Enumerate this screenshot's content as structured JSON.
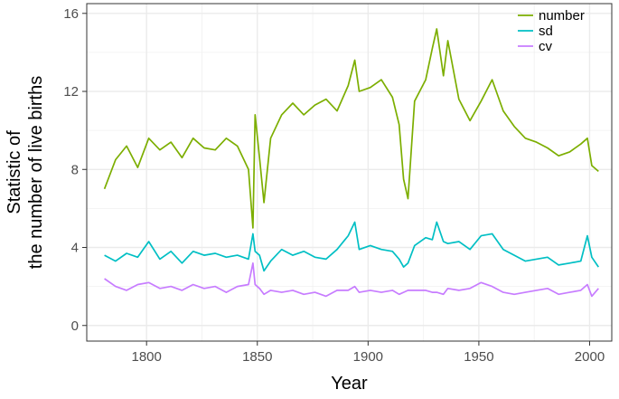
{
  "chart_data": {
    "type": "line",
    "xlabel": "Year",
    "ylabel_line1": "Statistic of",
    "ylabel_line2": "the number of live births",
    "xlim": [
      1773,
      2010
    ],
    "ylim": [
      -0.8,
      16.5
    ],
    "x_ticks": [
      1800,
      1850,
      1900,
      1950,
      2000
    ],
    "x_tick_labels": [
      "1800",
      "1850",
      "1900",
      "1950",
      "2000"
    ],
    "y_ticks": [
      0,
      4,
      8,
      12,
      16
    ],
    "y_tick_labels": [
      "0",
      "4",
      "8",
      "12",
      "16"
    ],
    "grid": true,
    "legend_position": "top-right",
    "x": [
      1781,
      1786,
      1791,
      1796,
      1801,
      1806,
      1811,
      1816,
      1821,
      1826,
      1831,
      1836,
      1841,
      1846,
      1848,
      1849,
      1851,
      1853,
      1856,
      1861,
      1866,
      1871,
      1876,
      1881,
      1886,
      1891,
      1894,
      1896,
      1901,
      1906,
      1911,
      1914,
      1916,
      1918,
      1921,
      1926,
      1929,
      1931,
      1934,
      1936,
      1941,
      1946,
      1951,
      1956,
      1961,
      1966,
      1971,
      1976,
      1981,
      1986,
      1991,
      1996,
      1999,
      2001,
      2004
    ],
    "series": [
      {
        "name": "number",
        "color": "#7CAE00",
        "values": [
          7.0,
          8.5,
          9.2,
          8.1,
          9.6,
          9.0,
          9.4,
          8.6,
          9.6,
          9.1,
          9.0,
          9.6,
          9.2,
          8.0,
          5.0,
          10.8,
          8.6,
          6.3,
          9.6,
          10.8,
          11.4,
          10.8,
          11.3,
          11.6,
          11.0,
          12.3,
          13.6,
          12.0,
          12.2,
          12.6,
          11.7,
          10.3,
          7.5,
          6.5,
          11.5,
          12.6,
          14.2,
          15.2,
          12.8,
          14.6,
          11.6,
          10.5,
          11.5,
          12.6,
          11.0,
          10.2,
          9.6,
          9.4,
          9.1,
          8.7,
          8.9,
          9.3,
          9.6,
          8.2,
          7.9
        ]
      },
      {
        "name": "sd",
        "color": "#00BFC4",
        "values": [
          3.6,
          3.3,
          3.7,
          3.5,
          4.3,
          3.4,
          3.8,
          3.2,
          3.8,
          3.6,
          3.7,
          3.5,
          3.6,
          3.4,
          4.7,
          3.8,
          3.6,
          2.8,
          3.3,
          3.9,
          3.6,
          3.8,
          3.5,
          3.4,
          3.9,
          4.6,
          5.3,
          3.9,
          4.1,
          3.9,
          3.8,
          3.4,
          3.0,
          3.2,
          4.1,
          4.5,
          4.4,
          5.3,
          4.3,
          4.2,
          4.3,
          3.9,
          4.6,
          4.7,
          3.9,
          3.6,
          3.3,
          3.4,
          3.5,
          3.1,
          3.2,
          3.3,
          4.6,
          3.5,
          3.0
        ]
      },
      {
        "name": "cv",
        "color": "#C77CFF",
        "values": [
          2.4,
          2.0,
          1.8,
          2.1,
          2.2,
          1.9,
          2.0,
          1.8,
          2.1,
          1.9,
          2.0,
          1.7,
          2.0,
          2.1,
          3.2,
          2.1,
          1.9,
          1.6,
          1.8,
          1.7,
          1.8,
          1.6,
          1.7,
          1.5,
          1.8,
          1.8,
          2.0,
          1.7,
          1.8,
          1.7,
          1.8,
          1.6,
          1.7,
          1.8,
          1.8,
          1.8,
          1.7,
          1.7,
          1.6,
          1.9,
          1.8,
          1.9,
          2.2,
          2.0,
          1.7,
          1.6,
          1.7,
          1.8,
          1.9,
          1.6,
          1.7,
          1.8,
          2.1,
          1.5,
          1.9
        ]
      }
    ]
  }
}
